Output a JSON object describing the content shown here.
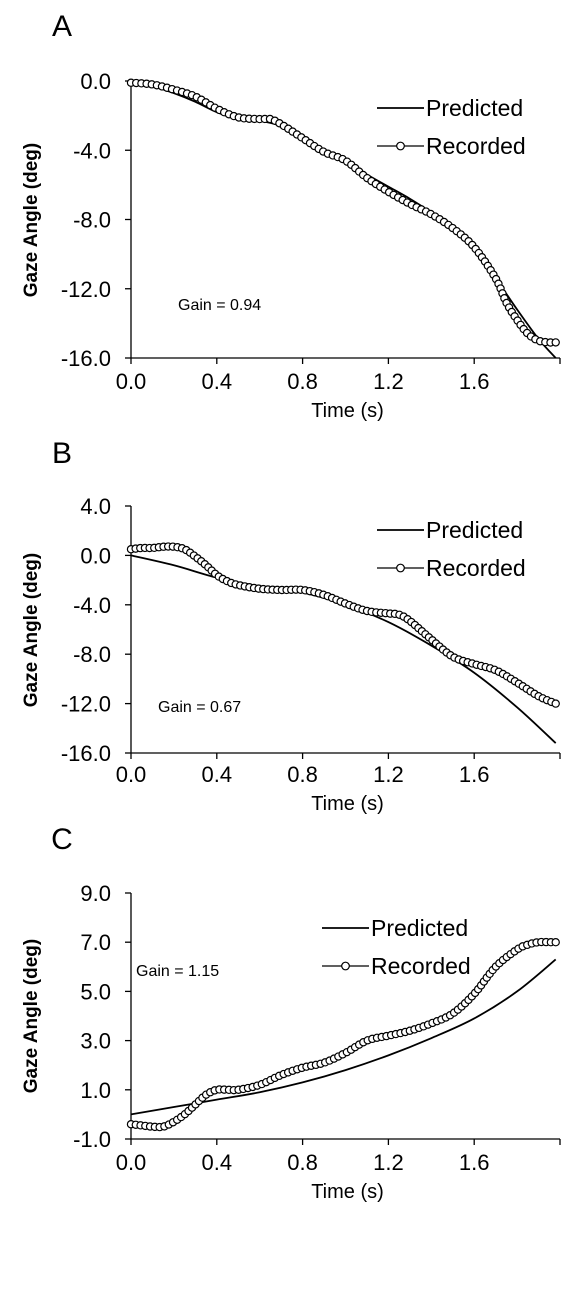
{
  "chart_data": [
    {
      "panel": "A",
      "type": "line",
      "xlabel": "Time (s)",
      "ylabel": "Gaze Angle (deg)",
      "xlim": [
        0,
        2.0
      ],
      "ylim": [
        -16,
        0
      ],
      "xticks": [
        "0.0",
        "0.4",
        "0.8",
        "1.2",
        "1.6"
      ],
      "yticks": [
        "0.0",
        "-4.0",
        "-8.0",
        "-12.0",
        "-16.0"
      ],
      "annotation": "Gain = 0.94",
      "legend": [
        "Predicted",
        "Recorded"
      ],
      "legend_position": "top-right",
      "series": [
        {
          "name": "Predicted",
          "style": "line",
          "x": [
            0.0,
            0.1,
            0.2,
            0.3,
            0.4,
            0.5,
            0.6,
            0.7,
            0.8,
            0.9,
            1.0,
            1.1,
            1.2,
            1.3,
            1.4,
            1.5,
            1.6,
            1.7,
            1.8,
            1.9,
            1.98
          ],
          "y": [
            -0.1,
            -0.3,
            -0.7,
            -1.2,
            -1.8,
            -2.2,
            -2.3,
            -2.6,
            -3.3,
            -4.0,
            -4.6,
            -5.4,
            -6.1,
            -6.8,
            -7.6,
            -8.6,
            -9.8,
            -11.4,
            -13.2,
            -14.9,
            -16.0
          ]
        },
        {
          "name": "Recorded",
          "style": "line-circle",
          "x": [
            0.0,
            0.1,
            0.2,
            0.3,
            0.4,
            0.5,
            0.6,
            0.65,
            0.7,
            0.8,
            0.9,
            1.0,
            1.1,
            1.2,
            1.3,
            1.4,
            1.5,
            1.6,
            1.7,
            1.75,
            1.8,
            1.85,
            1.9,
            1.95,
            1.98
          ],
          "y": [
            -0.1,
            -0.2,
            -0.5,
            -0.9,
            -1.6,
            -2.1,
            -2.2,
            -2.2,
            -2.5,
            -3.3,
            -4.1,
            -4.6,
            -5.6,
            -6.4,
            -7.1,
            -7.7,
            -8.5,
            -9.6,
            -11.4,
            -12.8,
            -13.8,
            -14.6,
            -15.0,
            -15.1,
            -15.1
          ]
        }
      ]
    },
    {
      "panel": "B",
      "type": "line",
      "xlabel": "Time (s)",
      "ylabel": "Gaze Angle (deg)",
      "xlim": [
        0,
        2.0
      ],
      "ylim": [
        -16,
        4
      ],
      "xticks": [
        "0.0",
        "0.4",
        "0.8",
        "1.2",
        "1.6"
      ],
      "yticks": [
        "4.0",
        "0.0",
        "-4.0",
        "-8.0",
        "-12.0",
        "-16.0"
      ],
      "annotation": "Gain = 0.67",
      "legend": [
        "Predicted",
        "Recorded"
      ],
      "legend_position": "top-right",
      "series": [
        {
          "name": "Predicted",
          "style": "line",
          "x": [
            0.0,
            0.2,
            0.4,
            0.6,
            0.8,
            1.0,
            1.2,
            1.4,
            1.6,
            1.8,
            1.98
          ],
          "y": [
            0.0,
            -0.8,
            -1.8,
            -2.5,
            -3.0,
            -4.0,
            -5.4,
            -7.3,
            -9.5,
            -12.3,
            -15.2
          ]
        },
        {
          "name": "Recorded",
          "style": "line-circle",
          "x": [
            0.0,
            0.05,
            0.1,
            0.15,
            0.2,
            0.25,
            0.3,
            0.35,
            0.4,
            0.45,
            0.5,
            0.6,
            0.7,
            0.8,
            0.9,
            1.0,
            1.1,
            1.2,
            1.25,
            1.3,
            1.4,
            1.5,
            1.6,
            1.7,
            1.8,
            1.9,
            1.98
          ],
          "y": [
            0.5,
            0.6,
            0.6,
            0.7,
            0.7,
            0.5,
            -0.1,
            -0.8,
            -1.6,
            -2.1,
            -2.4,
            -2.7,
            -2.8,
            -2.8,
            -3.2,
            -3.9,
            -4.5,
            -4.7,
            -4.8,
            -5.3,
            -6.8,
            -8.2,
            -8.8,
            -9.3,
            -10.3,
            -11.4,
            -12.0
          ]
        }
      ]
    },
    {
      "panel": "C",
      "type": "line",
      "xlabel": "Time (s)",
      "ylabel": "Gaze Angle (deg)",
      "xlim": [
        0,
        2.0
      ],
      "ylim": [
        -1,
        9
      ],
      "xticks": [
        "0.0",
        "0.4",
        "0.8",
        "1.2",
        "1.6"
      ],
      "yticks": [
        "9.0",
        "7.0",
        "5.0",
        "3.0",
        "1.0",
        "-1.0"
      ],
      "annotation": "Gain = 1.15",
      "legend": [
        "Predicted",
        "Recorded"
      ],
      "legend_position": "top-right",
      "series": [
        {
          "name": "Predicted",
          "style": "line",
          "x": [
            0.0,
            0.2,
            0.4,
            0.6,
            0.8,
            1.0,
            1.2,
            1.4,
            1.6,
            1.8,
            1.98
          ],
          "y": [
            0.0,
            0.3,
            0.6,
            0.9,
            1.3,
            1.8,
            2.4,
            3.1,
            3.9,
            5.0,
            6.3
          ]
        },
        {
          "name": "Recorded",
          "style": "line-circle",
          "x": [
            0.0,
            0.05,
            0.1,
            0.15,
            0.2,
            0.25,
            0.3,
            0.35,
            0.4,
            0.45,
            0.5,
            0.6,
            0.7,
            0.8,
            0.9,
            1.0,
            1.1,
            1.2,
            1.3,
            1.4,
            1.5,
            1.6,
            1.7,
            1.8,
            1.85,
            1.9,
            1.95,
            1.98
          ],
          "y": [
            -0.4,
            -0.45,
            -0.5,
            -0.5,
            -0.3,
            0.0,
            0.4,
            0.8,
            1.0,
            1.0,
            1.0,
            1.2,
            1.6,
            1.9,
            2.1,
            2.5,
            3.0,
            3.2,
            3.4,
            3.7,
            4.1,
            4.9,
            6.0,
            6.7,
            6.9,
            7.0,
            7.0,
            7.0
          ]
        }
      ]
    }
  ]
}
